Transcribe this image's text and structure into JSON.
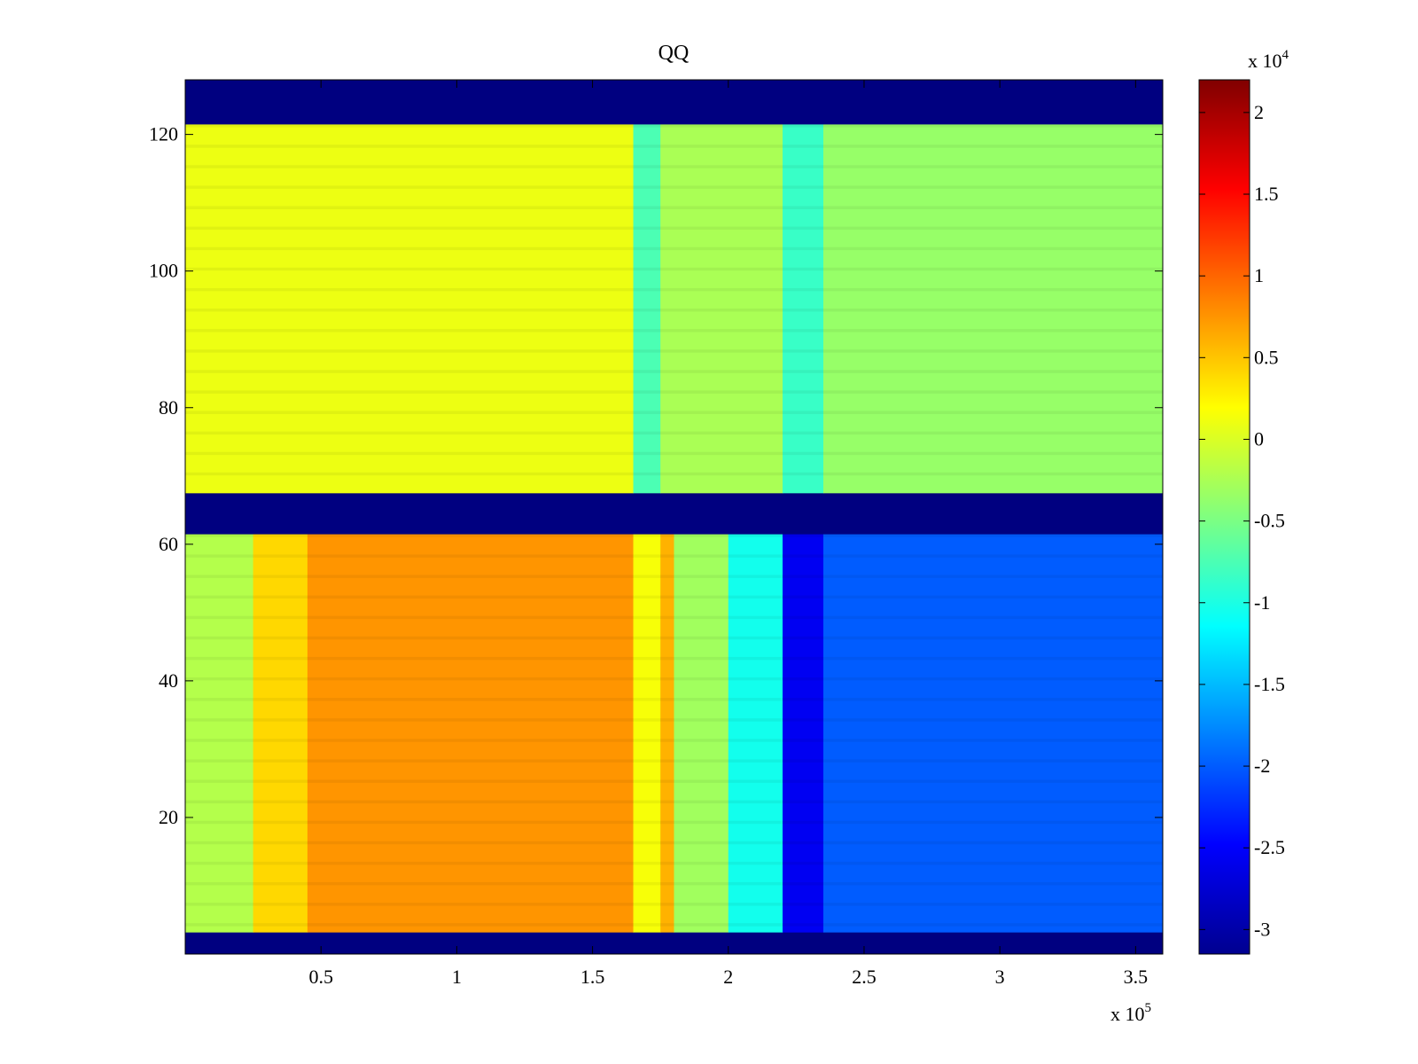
{
  "chart_data": {
    "type": "heatmap",
    "title": "QQ",
    "xlabel": "",
    "ylabel": "",
    "x_multiplier": "x 10",
    "x_multiplier_exp": "5",
    "xlim": [
      0,
      3.6
    ],
    "ylim": [
      0,
      128
    ],
    "x_ticks": [
      0.5,
      1,
      1.5,
      2,
      2.5,
      3,
      3.5
    ],
    "x_tick_labels": [
      "0.5",
      "1",
      "1.5",
      "2",
      "2.5",
      "3",
      "3.5"
    ],
    "y_ticks": [
      20,
      40,
      60,
      80,
      100,
      120
    ],
    "y_tick_labels": [
      "20",
      "40",
      "60",
      "80",
      "100",
      "120"
    ],
    "colormap": "jet",
    "colorbar": {
      "multiplier": "x 10",
      "multiplier_exp": "4",
      "range": [
        -3.15,
        2.2
      ],
      "ticks": [
        2,
        1.5,
        1,
        0.5,
        0,
        -0.5,
        -1,
        -1.5,
        -2,
        -2.5,
        -3
      ],
      "tick_labels": [
        "2",
        "1.5",
        "1",
        "0.5",
        "0",
        "-0.5",
        "-1",
        "-1.5",
        "-2",
        "-2.5",
        "-3"
      ]
    },
    "regions": [
      {
        "y": [
          0,
          3.2
        ],
        "segments": [
          {
            "x": [
              0,
              3.6
            ],
            "value": -3.15
          }
        ]
      },
      {
        "y": [
          3.2,
          61.5
        ],
        "segments": [
          {
            "x": [
              0,
              0.25
            ],
            "value": -0.2
          },
          {
            "x": [
              0.25,
              0.45
            ],
            "value": 0.4
          },
          {
            "x": [
              0.45,
              1.65
            ],
            "value": 0.75
          },
          {
            "x": [
              1.65,
              1.75
            ],
            "value": 0.15
          },
          {
            "x": [
              1.75,
              1.8
            ],
            "value": 0.6
          },
          {
            "x": [
              1.8,
              2.0
            ],
            "value": -0.3
          },
          {
            "x": [
              2.0,
              2.2
            ],
            "value": -1.05
          },
          {
            "x": [
              2.2,
              2.35
            ],
            "value": -2.55
          },
          {
            "x": [
              2.35,
              3.6
            ],
            "value": -2.0
          }
        ]
      },
      {
        "y": [
          61.5,
          67.5
        ],
        "segments": [
          {
            "x": [
              0,
              3.6
            ],
            "value": -3.15
          }
        ]
      },
      {
        "y": [
          67.5,
          121.5
        ],
        "segments": [
          {
            "x": [
              0,
              1.65
            ],
            "value": 0.1
          },
          {
            "x": [
              1.65,
              1.75
            ],
            "value": -0.75
          },
          {
            "x": [
              1.75,
              2.2
            ],
            "value": -0.25
          },
          {
            "x": [
              2.2,
              2.35
            ],
            "value": -0.85
          },
          {
            "x": [
              2.35,
              3.6
            ],
            "value": -0.35
          }
        ]
      },
      {
        "y": [
          121.5,
          128
        ],
        "segments": [
          {
            "x": [
              0,
              3.6
            ],
            "value": -3.15
          }
        ]
      }
    ]
  }
}
